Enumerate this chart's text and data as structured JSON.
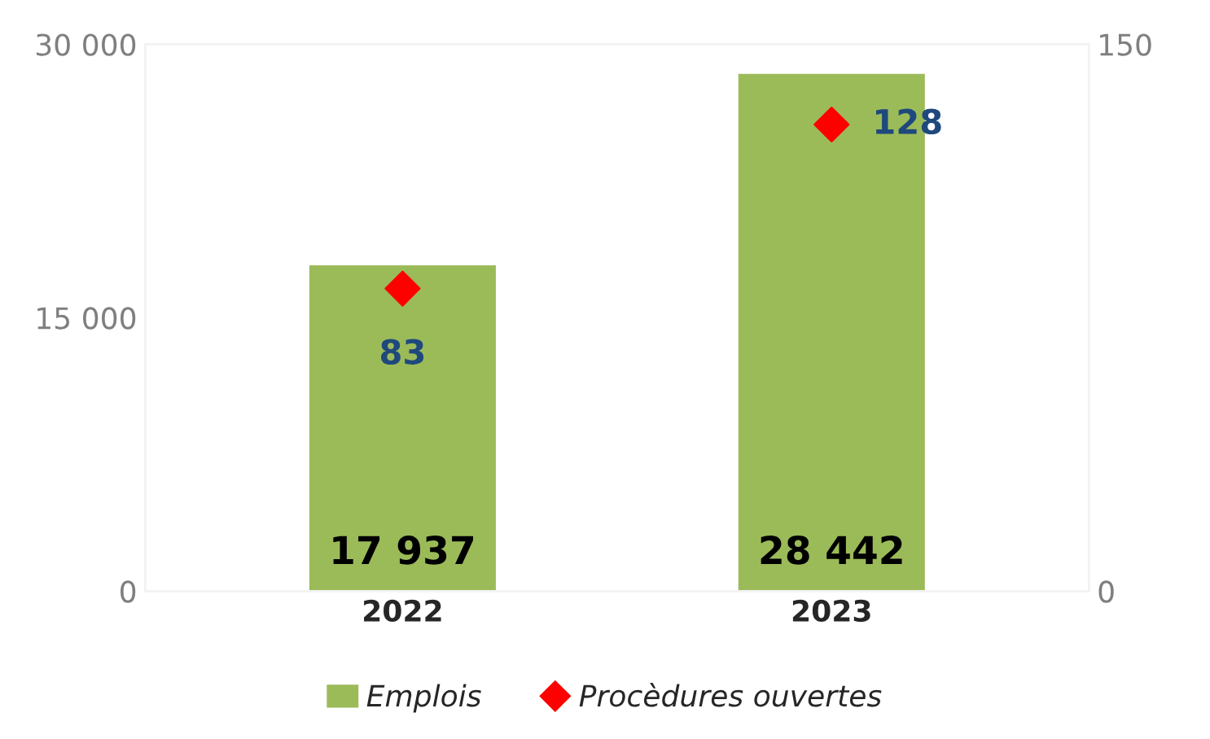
{
  "chart_data": {
    "type": "bar",
    "categories": [
      "2022",
      "2023"
    ],
    "series": [
      {
        "name": "Emplois",
        "color": "#9bbb59",
        "values": [
          17937,
          28442
        ],
        "value_labels": [
          "17 937",
          "28 442"
        ]
      },
      {
        "name": "Procèdures ouvertes",
        "type": "scatter",
        "axis": "y2",
        "color": "#ff0000",
        "marker": "diamond",
        "values": [
          83,
          128
        ],
        "value_labels": [
          "83",
          "128"
        ]
      }
    ],
    "ylim": [
      0,
      30000
    ],
    "yticks": [
      {
        "value": 0,
        "label": "0"
      },
      {
        "value": 15000,
        "label": "15 000"
      },
      {
        "value": 30000,
        "label": "30 000"
      }
    ],
    "y2lim": [
      0,
      150
    ],
    "y2ticks": [
      0,
      150
    ],
    "legend": "bottom",
    "grid": false
  }
}
